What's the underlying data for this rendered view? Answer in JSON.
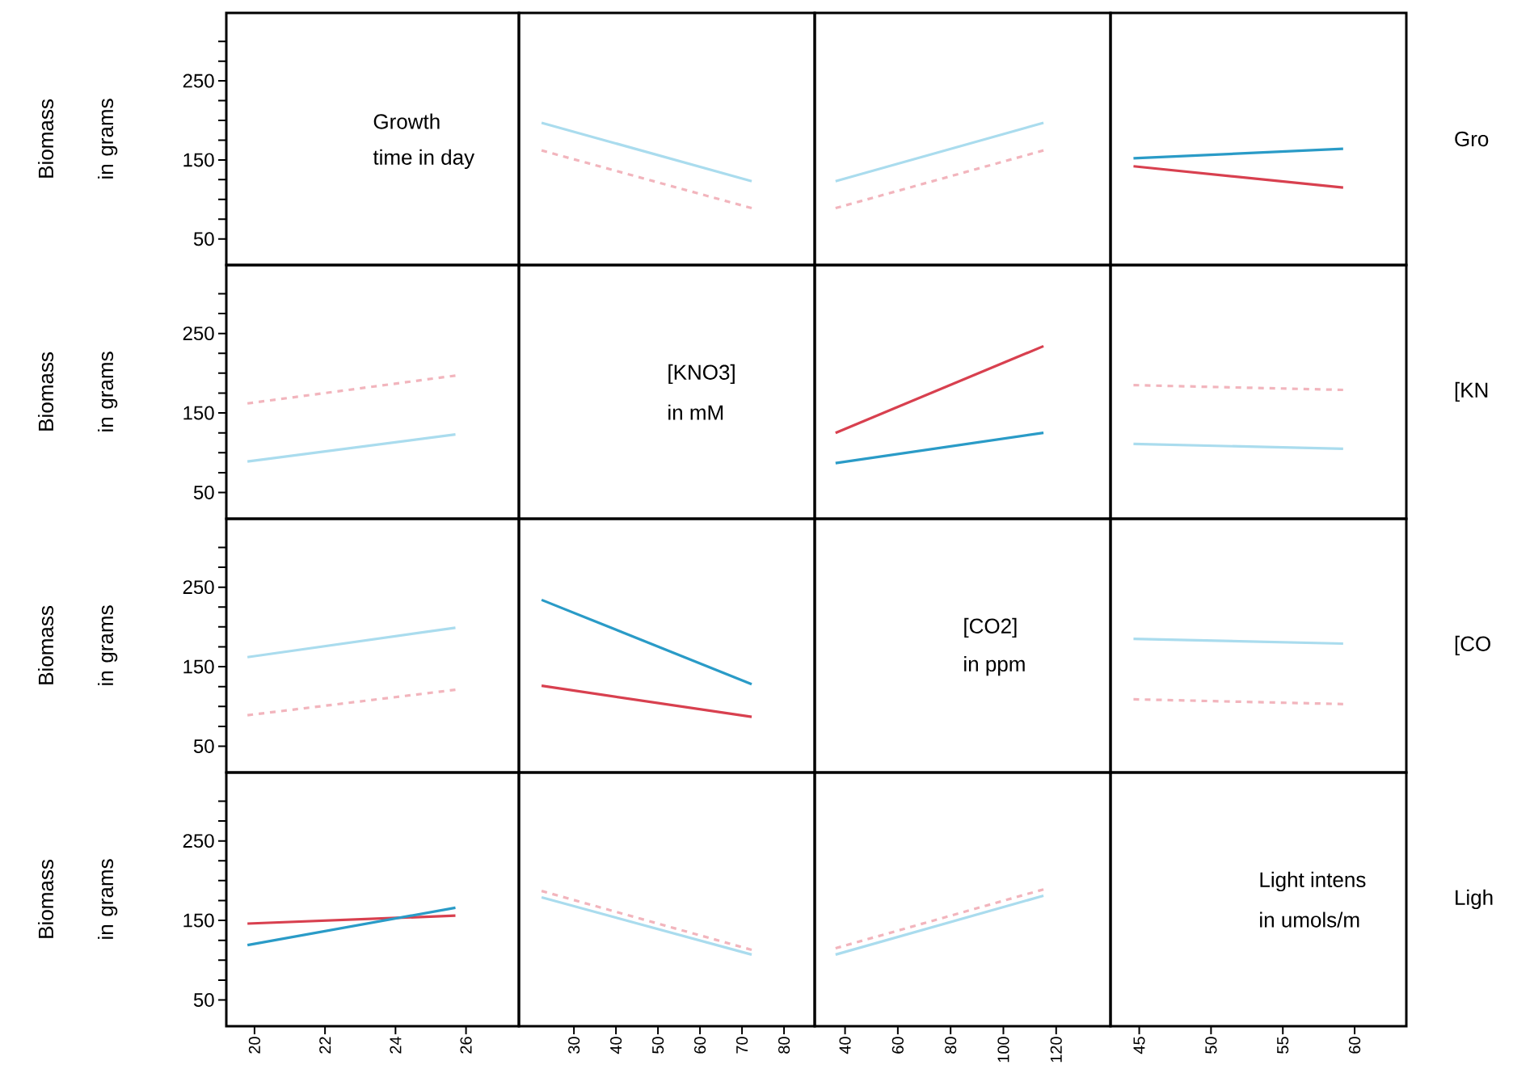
{
  "chart_data": [
    {
      "type": "line",
      "annotations": [
        "Growth",
        "time in day"
      ],
      "ylabel": "Biomass in grams",
      "tick_labels": "y",
      "xlim": [
        19.2,
        27.5
      ],
      "ylim": [
        17,
        336
      ],
      "yticks": [
        50,
        {
          "value": 75,
          "label": null
        },
        {
          "value": 100,
          "label": null
        },
        {
          "value": 125,
          "label": null
        },
        150,
        {
          "value": 175,
          "label": null
        },
        {
          "value": 200,
          "label": null
        },
        {
          "value": 225,
          "label": null
        },
        250,
        {
          "value": 275,
          "label": null
        },
        {
          "value": 300,
          "label": null
        }
      ]
    },
    {
      "type": "line",
      "tick_labels": false,
      "xlim": [
        16.9,
        87.3
      ],
      "ylim": [
        17,
        336
      ],
      "series": [
        {
          "color": "#aadcee",
          "line_style": "solid",
          "x": [
            22.3,
            72.3
          ],
          "values": [
            197,
            123
          ]
        },
        {
          "color": "#f2b5bd",
          "line_style": "dashed",
          "x": [
            22.3,
            72.3
          ],
          "values": [
            162,
            89
          ]
        }
      ]
    },
    {
      "type": "line",
      "tick_labels": false,
      "xlim": [
        28.5,
        140.6
      ],
      "ylim": [
        17,
        336
      ],
      "series": [
        {
          "color": "#aadcee",
          "line_style": "solid",
          "x": [
            36.4,
            115.2
          ],
          "values": [
            123,
            197
          ]
        },
        {
          "color": "#f2b5bd",
          "line_style": "dashed",
          "x": [
            36.4,
            115.2
          ],
          "values": [
            89,
            162
          ]
        }
      ]
    },
    {
      "type": "line",
      "tick_labels": false,
      "y2label": "Gro",
      "xlim": [
        43,
        63.6
      ],
      "ylim": [
        17,
        336
      ],
      "series": [
        {
          "color": "#2a9bc7",
          "line_style": "solid",
          "x": [
            44.6,
            59.2
          ],
          "values": [
            152,
            164
          ]
        },
        {
          "color": "#d8404f",
          "line_style": "solid",
          "x": [
            44.6,
            59.2
          ],
          "values": [
            142,
            115
          ]
        }
      ]
    },
    {
      "type": "line",
      "ylabel": "Biomass in grams",
      "tick_labels": "y",
      "xlim": [
        19.2,
        27.5
      ],
      "ylim": [
        17,
        336
      ],
      "yticks": [
        50,
        {
          "value": 75,
          "label": null
        },
        {
          "value": 100,
          "label": null
        },
        {
          "value": 125,
          "label": null
        },
        150,
        {
          "value": 175,
          "label": null
        },
        {
          "value": 200,
          "label": null
        },
        {
          "value": 225,
          "label": null
        },
        250,
        {
          "value": 275,
          "label": null
        },
        {
          "value": 300,
          "label": null
        }
      ],
      "series": [
        {
          "color": "#f2b5bd",
          "line_style": "dashed",
          "x": [
            19.8,
            25.7
          ],
          "values": [
            162,
            197
          ]
        },
        {
          "color": "#aadcee",
          "line_style": "solid",
          "x": [
            19.8,
            25.7
          ],
          "values": [
            89,
            123
          ]
        }
      ]
    },
    {
      "type": "line",
      "annotations": [
        "[KNO3]",
        "in mM"
      ],
      "tick_labels": false,
      "xlim": [
        16.9,
        87.3
      ],
      "ylim": [
        17,
        336
      ]
    },
    {
      "type": "line",
      "tick_labels": false,
      "xlim": [
        28.5,
        140.6
      ],
      "ylim": [
        17,
        336
      ],
      "series": [
        {
          "color": "#d8404f",
          "line_style": "solid",
          "x": [
            36.4,
            115.2
          ],
          "values": [
            125,
            234
          ]
        },
        {
          "color": "#2a9bc7",
          "line_style": "solid",
          "x": [
            36.4,
            115.2
          ],
          "values": [
            87,
            125
          ]
        }
      ]
    },
    {
      "type": "line",
      "tick_labels": false,
      "y2label": "[KN",
      "xlim": [
        43,
        63.6
      ],
      "ylim": [
        17,
        336
      ],
      "series": [
        {
          "color": "#f2b5bd",
          "line_style": "dashed",
          "x": [
            44.6,
            59.2
          ],
          "values": [
            185,
            179
          ]
        },
        {
          "color": "#aadcee",
          "line_style": "solid",
          "x": [
            44.6,
            59.2
          ],
          "values": [
            111,
            105
          ]
        }
      ]
    },
    {
      "type": "line",
      "ylabel": "Biomass in grams",
      "tick_labels": "y",
      "xlim": [
        19.2,
        27.5
      ],
      "ylim": [
        17,
        336
      ],
      "yticks": [
        50,
        {
          "value": 75,
          "label": null
        },
        {
          "value": 100,
          "label": null
        },
        {
          "value": 125,
          "label": null
        },
        150,
        {
          "value": 175,
          "label": null
        },
        {
          "value": 200,
          "label": null
        },
        {
          "value": 225,
          "label": null
        },
        250,
        {
          "value": 275,
          "label": null
        },
        {
          "value": 300,
          "label": null
        }
      ],
      "series": [
        {
          "color": "#aadcee",
          "line_style": "solid",
          "x": [
            19.8,
            25.7
          ],
          "values": [
            162,
            199
          ]
        },
        {
          "color": "#f2b5bd",
          "line_style": "dashed",
          "x": [
            19.8,
            25.7
          ],
          "values": [
            89,
            121
          ]
        }
      ]
    },
    {
      "type": "line",
      "tick_labels": false,
      "xlim": [
        16.9,
        87.3
      ],
      "ylim": [
        17,
        336
      ],
      "series": [
        {
          "color": "#2a9bc7",
          "line_style": "solid",
          "x": [
            22.3,
            72.3
          ],
          "values": [
            234,
            128
          ]
        },
        {
          "color": "#d8404f",
          "line_style": "solid",
          "x": [
            22.3,
            72.3
          ],
          "values": [
            126,
            87
          ]
        }
      ]
    },
    {
      "type": "line",
      "annotations": [
        "[CO2]",
        "in ppm"
      ],
      "tick_labels": false,
      "xlim": [
        28.5,
        140.6
      ],
      "ylim": [
        17,
        336
      ]
    },
    {
      "type": "line",
      "tick_labels": false,
      "y2label": "[CO",
      "xlim": [
        43,
        63.6
      ],
      "ylim": [
        17,
        336
      ],
      "series": [
        {
          "color": "#aadcee",
          "line_style": "solid",
          "x": [
            44.6,
            59.2
          ],
          "values": [
            185,
            179
          ]
        },
        {
          "color": "#f2b5bd",
          "line_style": "dashed",
          "x": [
            44.6,
            59.2
          ],
          "values": [
            109,
            103
          ]
        }
      ]
    },
    {
      "type": "line",
      "ylabel": "Biomass in grams",
      "xlim": [
        19.2,
        27.5
      ],
      "ylim": [
        17,
        336
      ],
      "xticks": [
        20,
        22,
        24,
        26
      ],
      "yticks": [
        50,
        {
          "value": 75,
          "label": null
        },
        {
          "value": 100,
          "label": null
        },
        {
          "value": 125,
          "label": null
        },
        150,
        {
          "value": 175,
          "label": null
        },
        {
          "value": 200,
          "label": null
        },
        {
          "value": 225,
          "label": null
        },
        250,
        {
          "value": 275,
          "label": null
        },
        {
          "value": 300,
          "label": null
        }
      ],
      "series": [
        {
          "color": "#d8404f",
          "line_style": "solid",
          "x": [
            19.8,
            25.7
          ],
          "values": [
            146,
            156
          ]
        },
        {
          "color": "#2a9bc7",
          "line_style": "solid",
          "x": [
            19.8,
            25.7
          ],
          "values": [
            119,
            166
          ]
        }
      ]
    },
    {
      "type": "line",
      "tick_labels": "x",
      "xlim": [
        16.9,
        87.3
      ],
      "ylim": [
        17,
        336
      ],
      "xticks": [
        30,
        40,
        50,
        60,
        70,
        80
      ],
      "series": [
        {
          "color": "#f2b5bd",
          "line_style": "dashed",
          "x": [
            22.3,
            72.3
          ],
          "values": [
            187,
            113
          ]
        },
        {
          "color": "#aadcee",
          "line_style": "solid",
          "x": [
            22.3,
            72.3
          ],
          "values": [
            179,
            107
          ]
        }
      ]
    },
    {
      "type": "line",
      "tick_labels": "x",
      "xlim": [
        28.5,
        140.6
      ],
      "ylim": [
        17,
        336
      ],
      "xticks": [
        40,
        60,
        80,
        100,
        120
      ],
      "series": [
        {
          "color": "#aadcee",
          "line_style": "solid",
          "x": [
            36.4,
            115.2
          ],
          "values": [
            107,
            181
          ]
        },
        {
          "color": "#f2b5bd",
          "line_style": "dashed",
          "x": [
            36.4,
            115.2
          ],
          "values": [
            115,
            189
          ]
        }
      ]
    },
    {
      "type": "line",
      "annotations": [
        "Light intens",
        "in umols/m"
      ],
      "y2label": "Ligh",
      "tick_labels": "x",
      "xlim": [
        43,
        63.6
      ],
      "ylim": [
        17,
        336
      ],
      "xticks": [
        45,
        50,
        55,
        60
      ]
    }
  ]
}
